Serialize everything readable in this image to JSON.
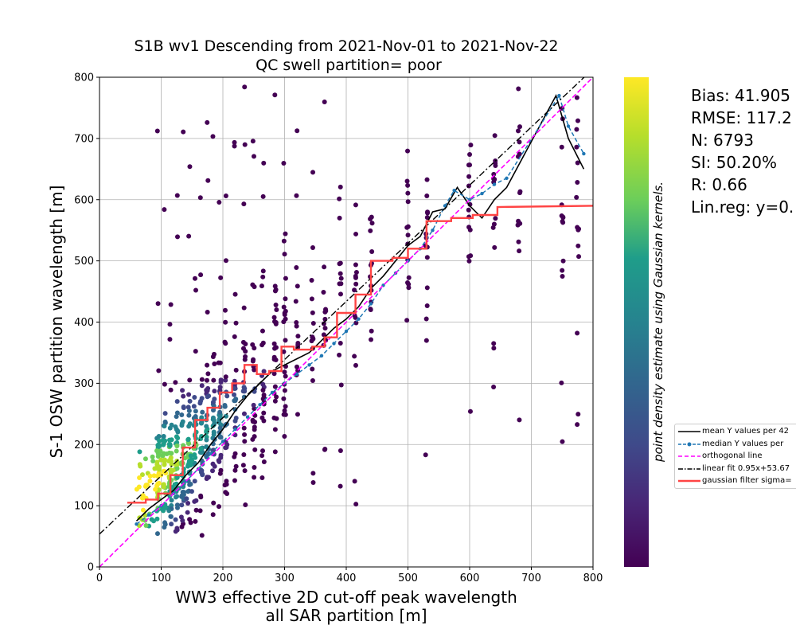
{
  "chart_data": {
    "type": "scatter",
    "title": "S1B wv1 Descending from 2021-Nov-01 to 2021-Nov-22",
    "subtitle": "QC swell partition= poor",
    "xlabel": "WW3 effective 2D cut-off peak wavelength",
    "xlabel2": "all SAR partition [m]",
    "ylabel": "S-1 OSW partition wavelength [m]",
    "colorbar_label": "point density estimate using Gaussian kernels.",
    "colormap": "viridis",
    "xlim": [
      0,
      800
    ],
    "ylim": [
      0,
      800
    ],
    "xticks": [
      "0",
      "100",
      "200",
      "300",
      "400",
      "500",
      "600",
      "700",
      "800"
    ],
    "yticks": [
      "0",
      "100",
      "200",
      "300",
      "400",
      "500",
      "600",
      "700",
      "800"
    ],
    "grid": true,
    "legend_position": "right",
    "stats": [
      "Bias: 41.905",
      "RMSE: 117.2",
      "N: 6793",
      "SI: 50.20%",
      "R: 0.66",
      "Lin.reg: y=0."
    ],
    "legend": [
      {
        "label": "mean Y values per 42",
        "color": "#000000",
        "style": "solid"
      },
      {
        "label": "median Y values per",
        "color": "#1f77b4",
        "style": "dashed-marker"
      },
      {
        "label": "orthogonal line",
        "color": "#ff00ff",
        "style": "dashed"
      },
      {
        "label": "linear fit 0.95x+53.67",
        "color": "#000000",
        "style": "dashdot"
      },
      {
        "label": "gaussian filter sigma=",
        "color": "#ff4444",
        "style": "solid-thick"
      }
    ],
    "series": [
      {
        "name": "mean Y values per 42",
        "x": [
          60,
          80,
          100,
          120,
          140,
          160,
          180,
          200,
          220,
          240,
          260,
          280,
          300,
          320,
          340,
          360,
          380,
          400,
          420,
          440,
          460,
          480,
          500,
          520,
          540,
          560,
          580,
          600,
          620,
          640,
          660,
          740,
          760,
          785
        ],
        "y": [
          75,
          95,
          110,
          125,
          150,
          170,
          200,
          225,
          255,
          280,
          300,
          320,
          330,
          340,
          350,
          370,
          390,
          405,
          425,
          455,
          475,
          500,
          525,
          540,
          580,
          585,
          620,
          590,
          570,
          600,
          620,
          770,
          700,
          650
        ]
      },
      {
        "name": "median Y values per",
        "x": [
          60,
          80,
          100,
          120,
          140,
          160,
          180,
          200,
          220,
          240,
          260,
          280,
          300,
          320,
          340,
          360,
          380,
          400,
          420,
          440,
          460,
          480,
          500,
          520,
          540,
          560,
          575,
          600,
          620,
          640,
          660,
          745,
          760,
          785
        ],
        "y": [
          70,
          85,
          100,
          120,
          140,
          160,
          185,
          205,
          225,
          245,
          265,
          285,
          300,
          315,
          330,
          345,
          365,
          385,
          405,
          430,
          460,
          480,
          500,
          520,
          550,
          590,
          615,
          600,
          610,
          625,
          635,
          770,
          720,
          675
        ]
      },
      {
        "name": "orthogonal line",
        "x": [
          0,
          800
        ],
        "y": [
          0,
          800
        ]
      },
      {
        "name": "linear fit 0.95x+53.67",
        "x": [
          0,
          800
        ],
        "y": [
          53.67,
          813.67
        ]
      },
      {
        "name": "gaussian filter sigma=",
        "x": [
          45,
          75,
          75,
          95,
          95,
          115,
          115,
          135,
          135,
          155,
          155,
          175,
          175,
          195,
          195,
          215,
          215,
          235,
          235,
          255,
          255,
          275,
          275,
          295,
          295,
          315,
          315,
          345,
          345,
          365,
          365,
          385,
          385,
          415,
          415,
          440,
          440,
          475,
          475,
          500,
          500,
          530,
          530,
          570,
          570,
          605,
          605,
          645,
          645,
          800
        ],
        "y": [
          105,
          105,
          110,
          110,
          120,
          120,
          150,
          150,
          195,
          195,
          240,
          240,
          260,
          260,
          285,
          285,
          300,
          300,
          330,
          330,
          315,
          315,
          320,
          320,
          360,
          360,
          355,
          355,
          360,
          360,
          375,
          375,
          415,
          415,
          445,
          445,
          500,
          500,
          505,
          505,
          520,
          520,
          565,
          565,
          570,
          570,
          575,
          575,
          588,
          590
        ]
      }
    ]
  }
}
